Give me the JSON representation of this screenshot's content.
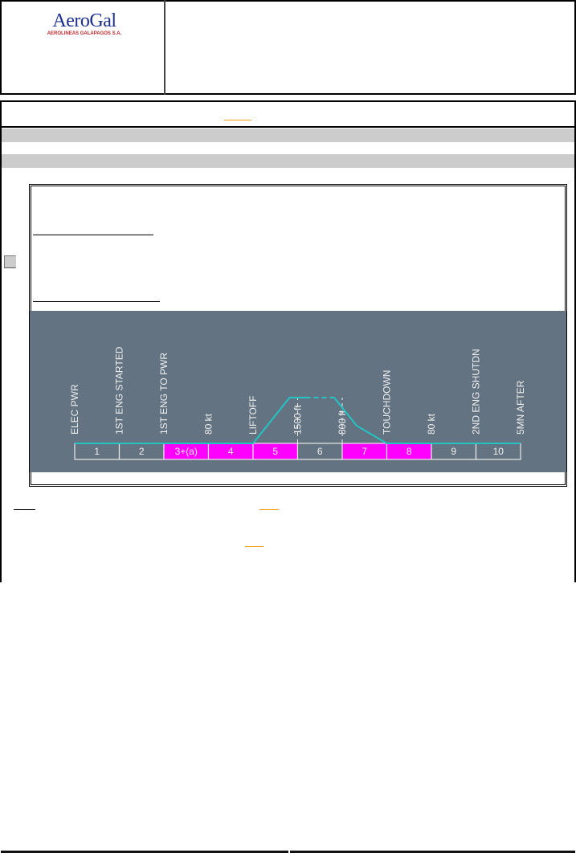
{
  "header": {
    "logo": {
      "name": "AeroGal",
      "subtitle": "AEROLINEAS GALAPAGOS S.A."
    }
  },
  "diagram": {
    "colors": {
      "background": "#637382",
      "highlight": "#ff00ff",
      "profile": "#22c4c4",
      "cell": "#637382",
      "border": "#ffffff"
    },
    "events": [
      "ELEC PWR",
      "1ST ENG STARTED",
      "1ST ENG TO PWR",
      "80 kt",
      "LIFTOFF",
      "1500 ft",
      "800 ft",
      "TOUCHDOWN",
      "80 kt",
      "2ND ENG SHUTDN",
      "5MN AFTER"
    ],
    "phases": [
      {
        "label": "1",
        "highlighted": false
      },
      {
        "label": "2",
        "highlighted": false
      },
      {
        "label": "3+(a)",
        "highlighted": true
      },
      {
        "label": "4",
        "highlighted": true
      },
      {
        "label": "5",
        "highlighted": true
      },
      {
        "label": "6",
        "highlighted": false
      },
      {
        "label": "7",
        "highlighted": true
      },
      {
        "label": "8",
        "highlighted": true
      },
      {
        "label": "9",
        "highlighted": false
      },
      {
        "label": "10",
        "highlighted": false
      }
    ]
  }
}
